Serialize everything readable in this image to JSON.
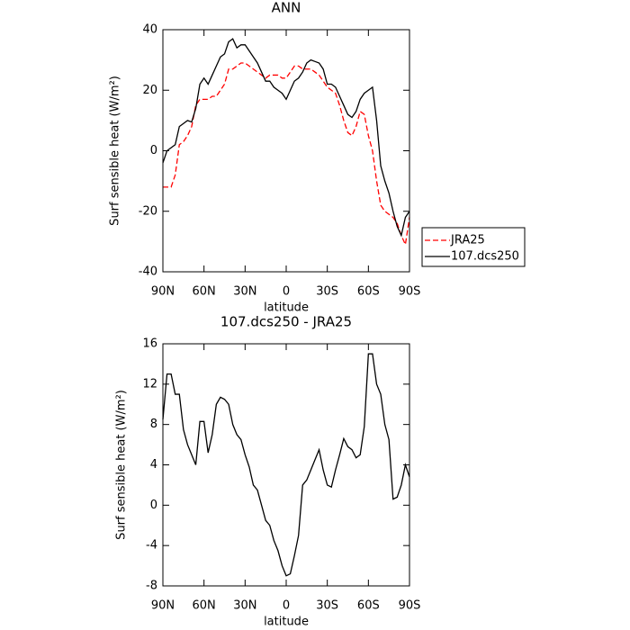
{
  "chart_data": [
    {
      "type": "line",
      "title": "ANN",
      "xlabel": "latitude",
      "ylabel": "Surf sensible heat (W/m²)",
      "x": [
        90,
        87,
        84,
        81,
        78,
        75,
        72,
        69,
        66,
        63,
        60,
        57,
        54,
        51,
        48,
        45,
        42,
        39,
        36,
        33,
        30,
        27,
        24,
        21,
        18,
        15,
        12,
        9,
        6,
        3,
        0,
        -3,
        -6,
        -9,
        -12,
        -15,
        -18,
        -21,
        -24,
        -27,
        -30,
        -33,
        -36,
        -39,
        -42,
        -45,
        -48,
        -51,
        -54,
        -57,
        -60,
        -63,
        -66,
        -69,
        -72,
        -75,
        -78,
        -81,
        -84,
        -87,
        -90
      ],
      "series": [
        {
          "name": "JRA25",
          "color": "#ff0000",
          "linestyle": "dashed",
          "values": [
            -12,
            -12,
            -12,
            -8,
            2,
            3,
            5,
            8,
            15,
            17,
            17,
            17,
            18,
            18,
            20,
            22,
            27,
            27,
            28,
            29,
            29,
            28,
            27,
            26,
            25,
            24,
            25,
            25,
            25,
            24,
            24,
            26,
            28,
            28,
            27,
            27,
            27,
            26,
            25,
            23,
            21,
            20,
            19,
            15,
            10,
            6,
            5,
            8,
            13,
            12,
            5,
            0,
            -10,
            -18,
            -20,
            -21,
            -22,
            -24,
            -28,
            -31,
            -22
          ]
        },
        {
          "name": "107.dcs250",
          "color": "#000000",
          "linestyle": "solid",
          "values": [
            -4,
            0,
            1,
            2,
            8,
            9,
            10,
            9.5,
            14,
            22,
            24,
            22,
            25,
            28,
            31,
            32,
            36,
            37,
            34,
            35,
            35,
            33,
            31,
            29,
            26,
            23,
            23,
            21,
            20,
            19,
            17,
            20,
            23,
            24,
            26,
            29,
            30,
            29.5,
            29,
            27,
            22,
            22,
            21,
            18,
            15,
            12,
            11,
            13,
            17,
            19,
            20,
            21,
            10,
            -5,
            -10,
            -14,
            -20,
            -25,
            -28,
            -22,
            -20
          ]
        }
      ],
      "xlim": [
        90,
        -90
      ],
      "xticks": [
        {
          "value": 90,
          "label": "90N"
        },
        {
          "value": 60,
          "label": "60N"
        },
        {
          "value": 30,
          "label": "30N"
        },
        0,
        {
          "value": -30,
          "label": "30S"
        },
        {
          "value": -60,
          "label": "60S"
        },
        {
          "value": -90,
          "label": "90S"
        }
      ],
      "ylim": [
        -40,
        40
      ],
      "yticks": [
        -40,
        -20,
        0,
        20,
        40
      ],
      "legend": "right"
    },
    {
      "type": "line",
      "title": "107.dcs250 - JRA25",
      "xlabel": "latitude",
      "ylabel": "Surf sensible heat (W/m²)",
      "x": [
        90,
        87,
        84,
        81,
        78,
        75,
        72,
        69,
        66,
        63,
        60,
        57,
        54,
        51,
        48,
        45,
        42,
        39,
        36,
        33,
        30,
        27,
        24,
        21,
        18,
        15,
        12,
        9,
        6,
        3,
        0,
        -3,
        -6,
        -9,
        -12,
        -15,
        -18,
        -21,
        -24,
        -27,
        -30,
        -33,
        -36,
        -39,
        -42,
        -45,
        -48,
        -51,
        -54,
        -57,
        -60,
        -63,
        -66,
        -69,
        -72,
        -75,
        -78,
        -81,
        -84,
        -87,
        -90
      ],
      "values": [
        8.5,
        13,
        13,
        11,
        11,
        7.5,
        6,
        5,
        4,
        8.3,
        8.3,
        5.2,
        7,
        10,
        10.7,
        10.5,
        10,
        8,
        7,
        6.5,
        5,
        3.8,
        2,
        1.5,
        0,
        -1.5,
        -2,
        -3.5,
        -4.5,
        -6,
        -7,
        -6.8,
        -5,
        -3,
        2,
        2.5,
        3.5,
        4.5,
        5.5,
        3.5,
        2,
        1.8,
        3.5,
        5,
        6.6,
        5.8,
        5.5,
        4.7,
        5,
        7.8,
        15,
        15,
        12,
        11,
        8,
        6.5,
        0.6,
        0.8,
        2,
        4,
        2.8
      ],
      "color": "#000000",
      "xlim": [
        90,
        -90
      ],
      "xticks": [
        {
          "value": 90,
          "label": "90N"
        },
        {
          "value": 60,
          "label": "60N"
        },
        {
          "value": 30,
          "label": "30N"
        },
        0,
        {
          "value": -30,
          "label": "30S"
        },
        {
          "value": -60,
          "label": "60S"
        },
        {
          "value": -90,
          "label": "90S"
        }
      ],
      "ylim": [
        -8,
        16
      ],
      "yticks": [
        -8,
        -4,
        0,
        4,
        8,
        12,
        16
      ]
    }
  ]
}
